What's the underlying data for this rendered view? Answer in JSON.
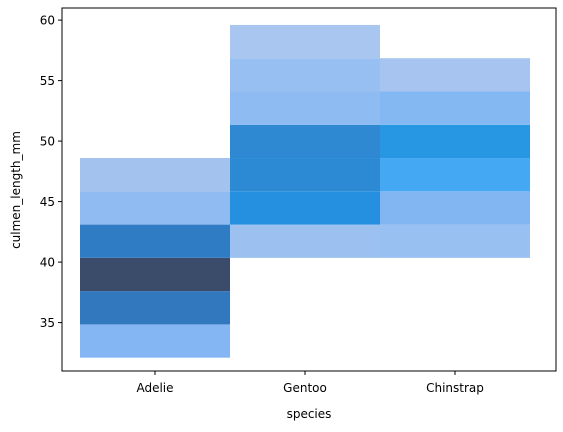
{
  "chart_data": {
    "type": "heatmap",
    "title": "",
    "xlabel": "species",
    "ylabel": "culmen_length_mm",
    "categories": [
      "Adelie",
      "Gentoo",
      "Chinstrap"
    ],
    "ylim": [
      31.0,
      61.0
    ],
    "yticks": [
      35,
      40,
      45,
      50,
      55,
      60
    ],
    "grid": false,
    "legend": "none",
    "bin_edges": [
      32.1,
      34.85,
      37.6,
      40.35,
      43.1,
      45.85,
      48.6,
      51.35,
      54.1,
      56.85,
      59.6
    ],
    "bins": [
      {
        "species": "Adelie",
        "y0": 32.1,
        "y1": 34.85,
        "color": "#84b6f4"
      },
      {
        "species": "Adelie",
        "y0": 34.85,
        "y1": 37.6,
        "color": "#3278bf"
      },
      {
        "species": "Adelie",
        "y0": 37.6,
        "y1": 40.35,
        "color": "#3b4c6b"
      },
      {
        "species": "Adelie",
        "y0": 40.35,
        "y1": 43.1,
        "color": "#2f7cc4"
      },
      {
        "species": "Adelie",
        "y0": 43.1,
        "y1": 45.85,
        "color": "#8fbaf2"
      },
      {
        "species": "Adelie",
        "y0": 45.85,
        "y1": 48.6,
        "color": "#a3c2ee"
      },
      {
        "species": "Gentoo",
        "y0": 40.35,
        "y1": 43.1,
        "color": "#9cc0f0"
      },
      {
        "species": "Gentoo",
        "y0": 43.1,
        "y1": 45.85,
        "color": "#2690e0"
      },
      {
        "species": "Gentoo",
        "y0": 45.85,
        "y1": 48.6,
        "color": "#2c8ad4"
      },
      {
        "species": "Gentoo",
        "y0": 48.6,
        "y1": 51.35,
        "color": "#2e88d2"
      },
      {
        "species": "Gentoo",
        "y0": 51.35,
        "y1": 54.1,
        "color": "#8ebbf2"
      },
      {
        "species": "Gentoo",
        "y0": 54.1,
        "y1": 56.85,
        "color": "#97bff2"
      },
      {
        "species": "Gentoo",
        "y0": 56.85,
        "y1": 59.6,
        "color": "#a8c6f0"
      },
      {
        "species": "Chinstrap",
        "y0": 40.35,
        "y1": 43.1,
        "color": "#98c0f0"
      },
      {
        "species": "Chinstrap",
        "y0": 43.1,
        "y1": 45.85,
        "color": "#82b6f2"
      },
      {
        "species": "Chinstrap",
        "y0": 45.85,
        "y1": 48.6,
        "color": "#45a8f2"
      },
      {
        "species": "Chinstrap",
        "y0": 48.6,
        "y1": 51.35,
        "color": "#2897e3"
      },
      {
        "species": "Chinstrap",
        "y0": 51.35,
        "y1": 54.1,
        "color": "#84b8f2"
      },
      {
        "species": "Chinstrap",
        "y0": 54.1,
        "y1": 56.85,
        "color": "#a6c4ef"
      }
    ]
  }
}
